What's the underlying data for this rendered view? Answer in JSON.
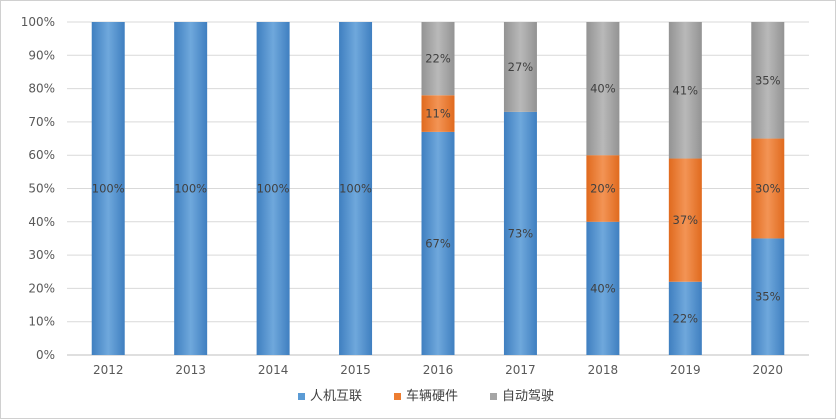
{
  "chart_data": {
    "type": "bar",
    "stacked": true,
    "percent": true,
    "categories": [
      "2012",
      "2013",
      "2014",
      "2015",
      "2016",
      "2017",
      "2018",
      "2019",
      "2020"
    ],
    "series": [
      {
        "name": "人机互联",
        "color": "#5b9bd5",
        "values": [
          100,
          100,
          100,
          100,
          67,
          73,
          40,
          22,
          35
        ],
        "labels": [
          "100%",
          "100%",
          "100%",
          "100%",
          "67%",
          "73%",
          "40%",
          "22%",
          "35%"
        ]
      },
      {
        "name": "车辆硬件",
        "color": "#ed7d31",
        "values": [
          0,
          0,
          0,
          0,
          11,
          0,
          20,
          37,
          30
        ],
        "labels": [
          "",
          "",
          "",
          "",
          "11%",
          "",
          "20%",
          "37%",
          "30%"
        ]
      },
      {
        "name": "自动驾驶",
        "color": "#a5a5a5",
        "values": [
          0,
          0,
          0,
          0,
          22,
          27,
          40,
          41,
          35
        ],
        "labels": [
          "",
          "",
          "",
          "",
          "22%",
          "27%",
          "40%",
          "41%",
          "35%"
        ]
      }
    ],
    "ylim": [
      0,
      100
    ],
    "yticks": [
      "0%",
      "10%",
      "20%",
      "30%",
      "40%",
      "50%",
      "60%",
      "70%",
      "80%",
      "90%",
      "100%"
    ],
    "grid": true,
    "legend_position": "bottom",
    "title": "",
    "xlabel": "",
    "ylabel": ""
  }
}
